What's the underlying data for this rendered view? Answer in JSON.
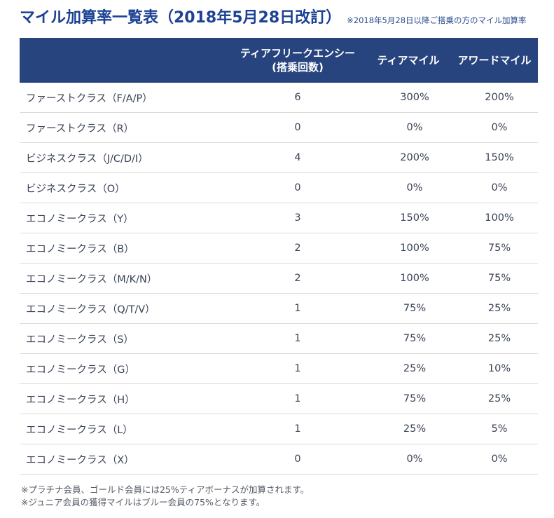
{
  "title": "マイル加算率一覧表（2018年5月28日改訂）",
  "subnote": "※2018年5月28日以降ご搭乗の方のマイル加算率",
  "table": {
    "headers": {
      "class": "",
      "tier_frequency_line1": "ティアフリークエンシー",
      "tier_frequency_line2": "(搭乗回数)",
      "tier_miles": "ティアマイル",
      "award_miles": "アワードマイル"
    },
    "rows": [
      {
        "class": "ファーストクラス（F/A/P）",
        "tier_frequency": "6",
        "tier_miles": "300%",
        "award_miles": "200%"
      },
      {
        "class": "ファーストクラス（R）",
        "tier_frequency": "0",
        "tier_miles": "0%",
        "award_miles": "0%"
      },
      {
        "class": "ビジネスクラス（J/C/D/I）",
        "tier_frequency": "4",
        "tier_miles": "200%",
        "award_miles": "150%"
      },
      {
        "class": "ビジネスクラス（O）",
        "tier_frequency": "0",
        "tier_miles": "0%",
        "award_miles": "0%"
      },
      {
        "class": "エコノミークラス（Y）",
        "tier_frequency": "3",
        "tier_miles": "150%",
        "award_miles": "100%"
      },
      {
        "class": "エコノミークラス（B）",
        "tier_frequency": "2",
        "tier_miles": "100%",
        "award_miles": "75%"
      },
      {
        "class": "エコノミークラス（M/K/N）",
        "tier_frequency": "2",
        "tier_miles": "100%",
        "award_miles": "75%"
      },
      {
        "class": "エコノミークラス（Q/T/V）",
        "tier_frequency": "1",
        "tier_miles": "75%",
        "award_miles": "25%"
      },
      {
        "class": "エコノミークラス（S）",
        "tier_frequency": "1",
        "tier_miles": "75%",
        "award_miles": "25%"
      },
      {
        "class": "エコノミークラス（G）",
        "tier_frequency": "1",
        "tier_miles": "25%",
        "award_miles": "10%"
      },
      {
        "class": "エコノミークラス（H）",
        "tier_frequency": "1",
        "tier_miles": "75%",
        "award_miles": "25%"
      },
      {
        "class": "エコノミークラス（L）",
        "tier_frequency": "1",
        "tier_miles": "25%",
        "award_miles": "5%"
      },
      {
        "class": "エコノミークラス（X）",
        "tier_frequency": "0",
        "tier_miles": "0%",
        "award_miles": "0%"
      }
    ]
  },
  "notes": [
    "※プラチナ会員、ゴールド会員には25%ティアボーナスが加算されます。",
    "※ジュニア会員の獲得マイルはブルー会員の75%となります。"
  ],
  "colors": {
    "title": "#1d4293",
    "header_bg": "#27447e",
    "header_text": "#ffffff",
    "row_border": "#dcdcdc"
  }
}
